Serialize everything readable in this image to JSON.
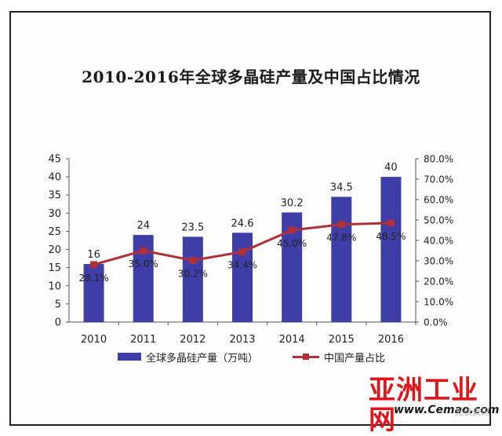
{
  "chart_data": {
    "type": "bar+line",
    "title": "2010-2016年全球多晶硅产量及中国占比情况",
    "categories": [
      "2010",
      "2011",
      "2012",
      "2013",
      "2014",
      "2015",
      "2016"
    ],
    "series": [
      {
        "name": "全球多晶硅产量（万吨）",
        "type": "bar",
        "axis": "left",
        "values": [
          16,
          24,
          23.5,
          24.6,
          30.2,
          34.5,
          40
        ],
        "labels": [
          "16",
          "24",
          "23.5",
          "24.6",
          "30.2",
          "34.5",
          "40"
        ],
        "color": "#3e3ea8"
      },
      {
        "name": "中国产量占比",
        "type": "line",
        "axis": "right",
        "values": [
          28.1,
          35.0,
          30.2,
          34.4,
          45.0,
          47.8,
          48.5
        ],
        "labels": [
          "28.1%",
          "35.0%",
          "30.2%",
          "34.4%",
          "45.0%",
          "47.8%",
          "48.5%"
        ],
        "color": "#b0303a"
      }
    ],
    "y_left": {
      "range": [
        0,
        45
      ],
      "ticks": [
        0,
        5,
        10,
        15,
        20,
        25,
        30,
        35,
        40,
        45
      ],
      "tick_labels": [
        "0",
        "5",
        "10",
        "15",
        "20",
        "25",
        "30",
        "35",
        "40",
        "45"
      ]
    },
    "y_right": {
      "range": [
        0,
        80
      ],
      "ticks": [
        0,
        10,
        20,
        30,
        40,
        50,
        60,
        70,
        80
      ],
      "tick_labels": [
        "0.0%",
        "10.0%",
        "20.0%",
        "30.0%",
        "40.0%",
        "50.0%",
        "60.0%",
        "70.0%",
        "80.0%"
      ]
    },
    "grid": false,
    "legend_position": "bottom"
  },
  "watermark": {
    "brand": "亚洲工业网",
    "url": "www.Cemao.com",
    "wechat_text": "光伏资讯"
  }
}
